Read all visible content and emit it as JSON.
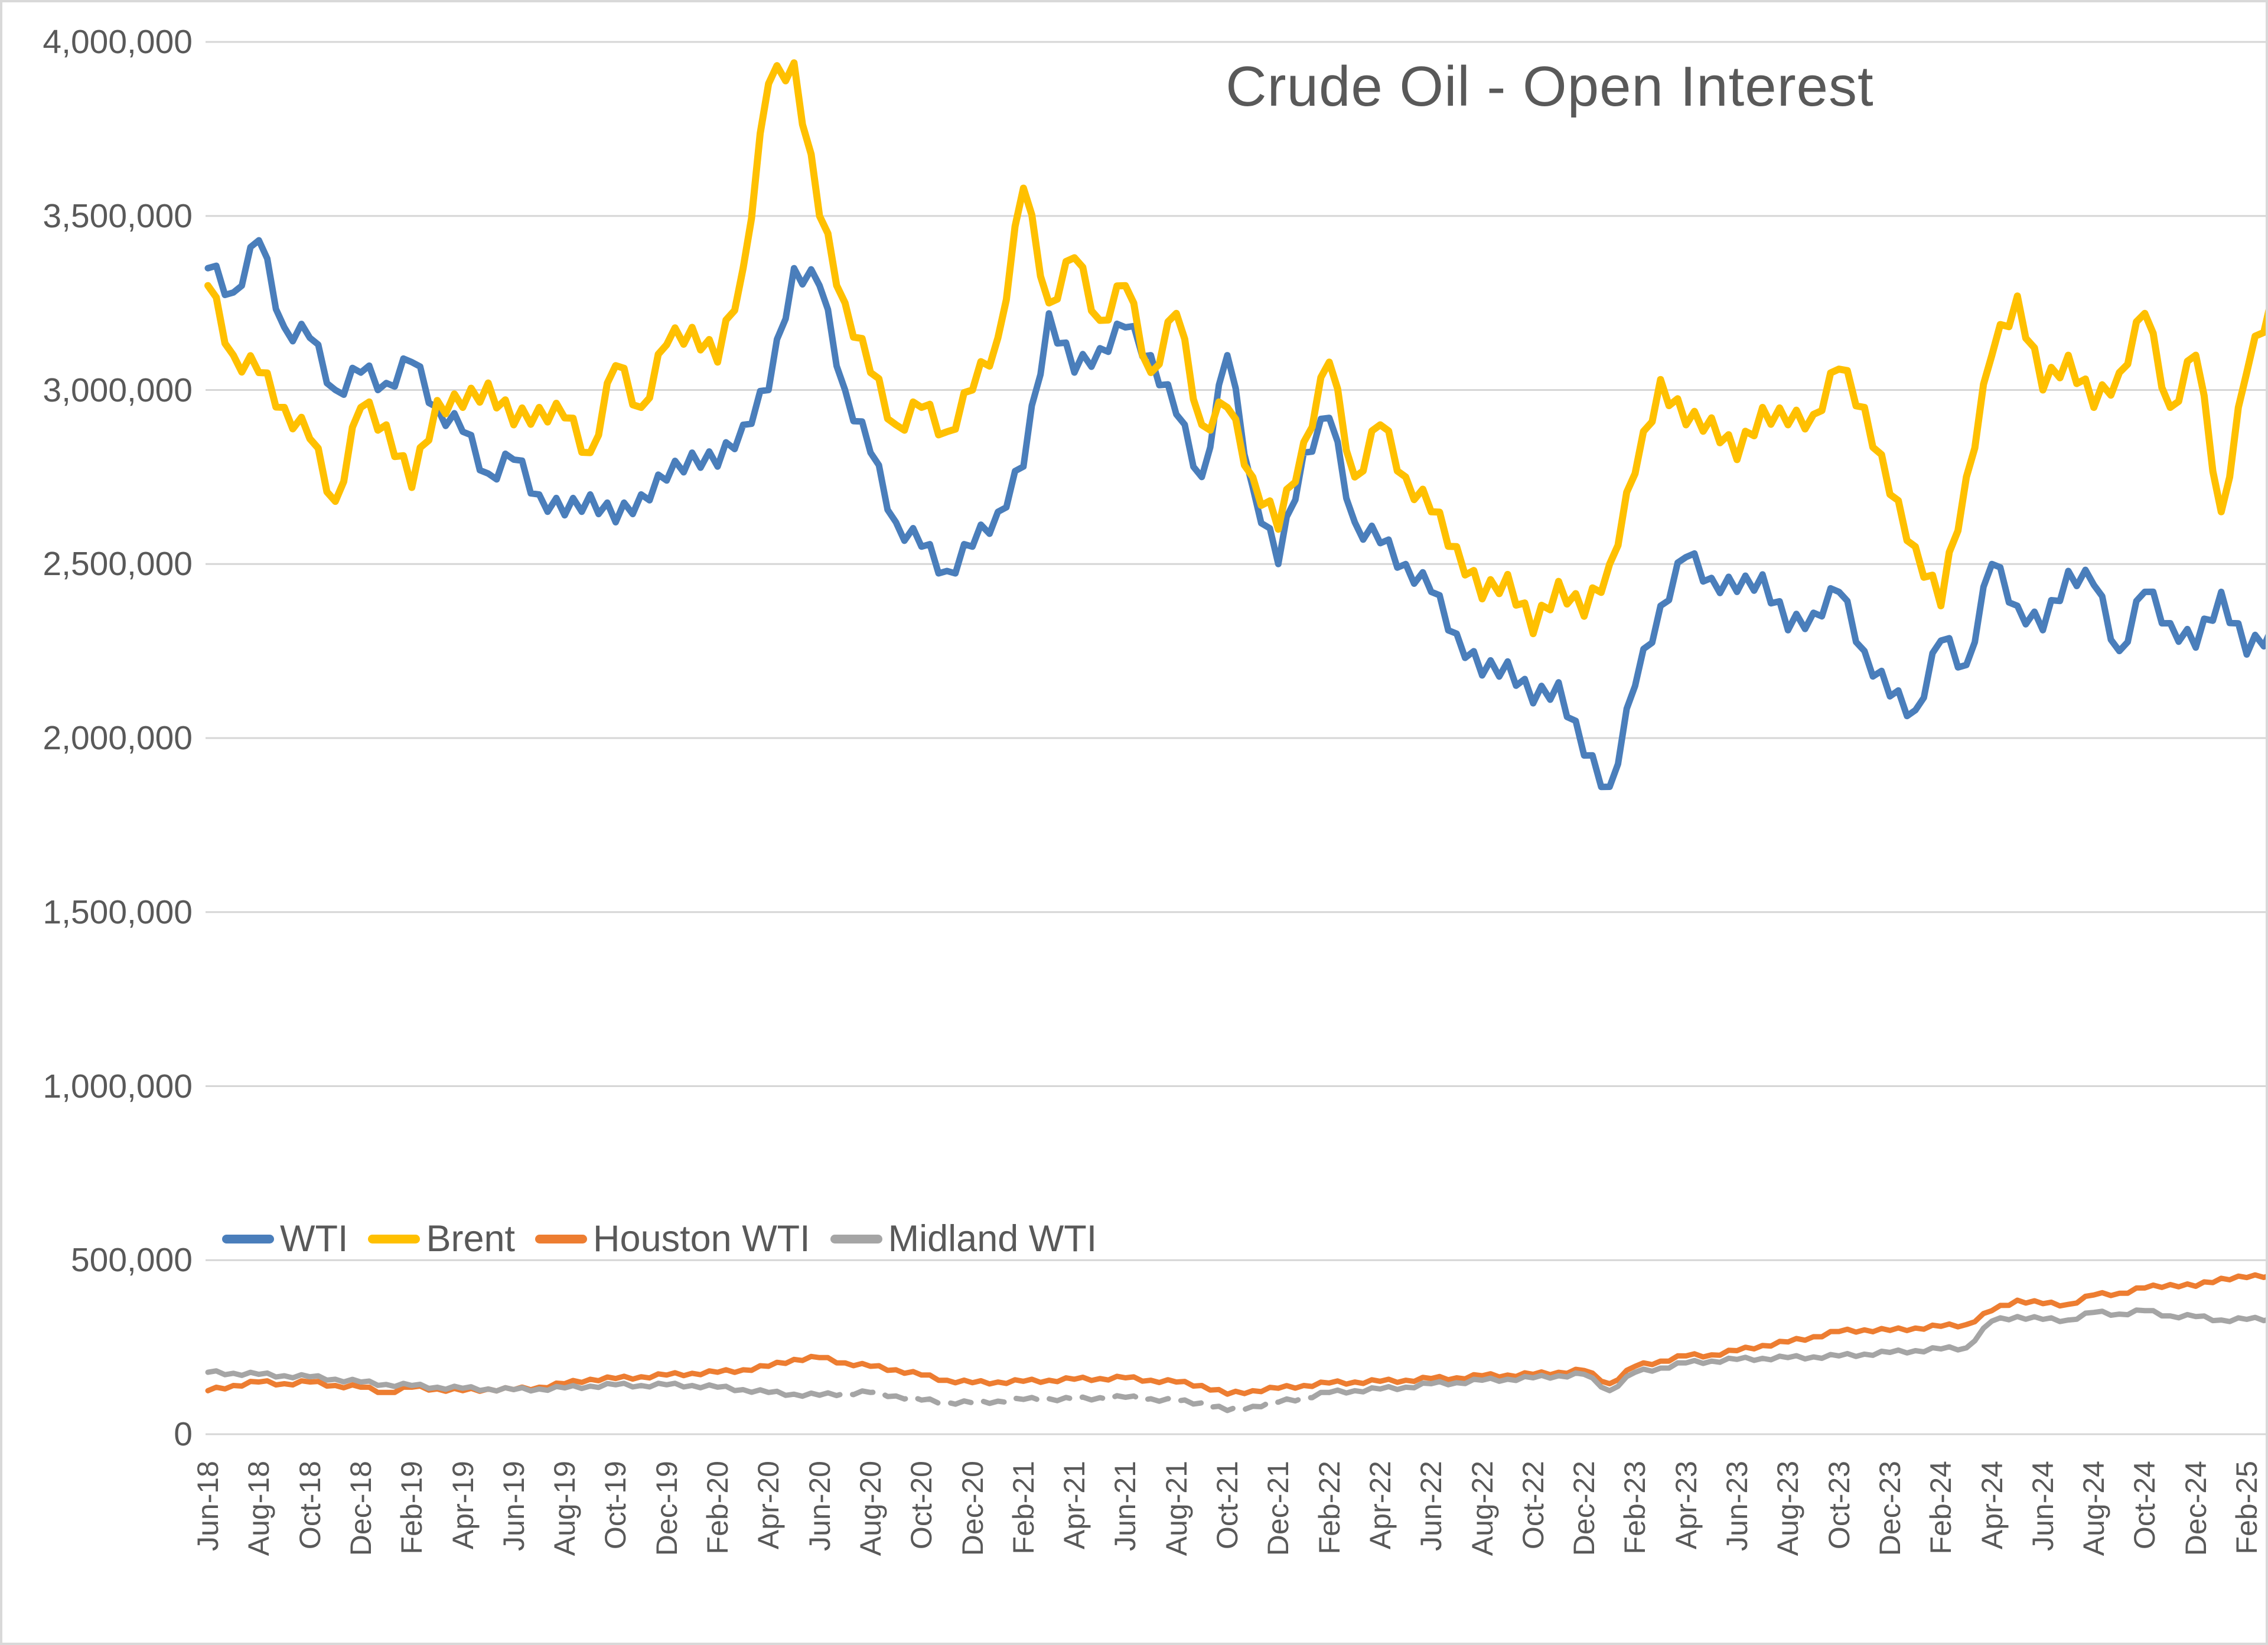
{
  "title": "Crude Oil - Open Interest",
  "colors": {
    "wti": "#4A7EBB",
    "brent": "#FFC000",
    "houston_wti": "#ED7D31",
    "midland_wti": "#A5A5A5",
    "gridline": "#D6D6D6",
    "text": "#595959",
    "background": "#FFFFFF"
  },
  "chart_data": {
    "type": "line",
    "title": "Crude Oil - Open Interest",
    "xlabel": "",
    "ylabel": "",
    "ylim": [
      0,
      4000000
    ],
    "y_tick_step": 500000,
    "y_tick_labels": [
      "0",
      "500,000",
      "1,000,000",
      "1,500,000",
      "2,000,000",
      "2,500,000",
      "3,000,000",
      "3,500,000",
      "4,000,000"
    ],
    "grid": "horizontal",
    "legend_position": "inside-bottom-left",
    "x": [
      "Jun-18",
      "Jul-18",
      "Aug-18",
      "Sep-18",
      "Oct-18",
      "Nov-18",
      "Dec-18",
      "Jan-19",
      "Feb-19",
      "Mar-19",
      "Apr-19",
      "May-19",
      "Jun-19",
      "Jul-19",
      "Aug-19",
      "Sep-19",
      "Oct-19",
      "Nov-19",
      "Dec-19",
      "Jan-20",
      "Feb-20",
      "Mar-20",
      "Apr-20",
      "May-20",
      "Jun-20",
      "Jul-20",
      "Aug-20",
      "Sep-20",
      "Oct-20",
      "Nov-20",
      "Dec-20",
      "Jan-21",
      "Feb-21",
      "Mar-21",
      "Apr-21",
      "May-21",
      "Jun-21",
      "Jul-21",
      "Aug-21",
      "Sep-21",
      "Oct-21",
      "Nov-21",
      "Dec-21",
      "Jan-22",
      "Feb-22",
      "Mar-22",
      "Apr-22",
      "May-22",
      "Jun-22",
      "Jul-22",
      "Aug-22",
      "Sep-22",
      "Oct-22",
      "Nov-22",
      "Dec-22",
      "Jan-23",
      "Feb-23",
      "Mar-23",
      "Apr-23",
      "May-23",
      "Jun-23",
      "Jul-23",
      "Aug-23",
      "Sep-23",
      "Oct-23",
      "Nov-23",
      "Dec-23",
      "Jan-24",
      "Feb-24",
      "Mar-24",
      "Apr-24",
      "May-24",
      "Jun-24",
      "Jul-24",
      "Aug-24",
      "Sep-24",
      "Oct-24",
      "Nov-24",
      "Dec-24",
      "Jan-25",
      "Feb-25",
      "Mar-25"
    ],
    "x_tick_labels": [
      "Jun-18",
      "Aug-18",
      "Oct-18",
      "Dec-18",
      "Feb-19",
      "Apr-19",
      "Jun-19",
      "Aug-19",
      "Oct-19",
      "Dec-19",
      "Feb-20",
      "Apr-20",
      "Jun-20",
      "Aug-20",
      "Oct-20",
      "Dec-20",
      "Feb-21",
      "Apr-21",
      "Jun-21",
      "Aug-21",
      "Oct-21",
      "Dec-21",
      "Feb-22",
      "Apr-22",
      "Jun-22",
      "Aug-22",
      "Oct-22",
      "Dec-22",
      "Feb-23",
      "Apr-23",
      "Jun-23",
      "Aug-23",
      "Oct-23",
      "Dec-23",
      "Feb-24",
      "Apr-24",
      "Jun-24",
      "Aug-24",
      "Oct-24",
      "Dec-24",
      "Feb-25"
    ],
    "series": [
      {
        "name": "WTI",
        "color": "#4A7EBB",
        "values": [
          3350000,
          3280000,
          3430000,
          3180000,
          3150000,
          3000000,
          3050000,
          3020000,
          3080000,
          2950000,
          2880000,
          2760000,
          2800000,
          2700000,
          2640000,
          2700000,
          2620000,
          2700000,
          2740000,
          2820000,
          2780000,
          2900000,
          3000000,
          3350000,
          3300000,
          3000000,
          2820000,
          2620000,
          2550000,
          2480000,
          2550000,
          2650000,
          2780000,
          3220000,
          3050000,
          3120000,
          3180000,
          3100000,
          2930000,
          2750000,
          3100000,
          2720000,
          2500000,
          2820000,
          2920000,
          2620000,
          2560000,
          2500000,
          2420000,
          2300000,
          2180000,
          2220000,
          2100000,
          2160000,
          1950000,
          1860000,
          2150000,
          2380000,
          2520000,
          2460000,
          2420000,
          2470000,
          2310000,
          2360000,
          2420000,
          2250000,
          2120000,
          2080000,
          2280000,
          2210000,
          2500000,
          2380000,
          2310000,
          2480000,
          2440000,
          2250000,
          2420000,
          2330000,
          2260000,
          2420000,
          2240000,
          2320000
        ]
      },
      {
        "name": "Brent",
        "color": "#FFC000",
        "values": [
          3300000,
          3100000,
          3050000,
          2950000,
          2860000,
          2680000,
          2950000,
          2900000,
          2720000,
          2970000,
          2950000,
          3020000,
          2900000,
          2950000,
          2920000,
          2820000,
          3070000,
          2950000,
          3130000,
          3180000,
          3080000,
          3350000,
          3880000,
          3940000,
          3500000,
          3250000,
          3050000,
          2900000,
          2950000,
          2880000,
          3000000,
          3150000,
          3580000,
          3250000,
          3380000,
          3200000,
          3300000,
          3050000,
          3220000,
          2900000,
          2950000,
          2750000,
          2600000,
          2850000,
          3080000,
          2750000,
          2900000,
          2750000,
          2650000,
          2550000,
          2400000,
          2470000,
          2300000,
          2450000,
          2350000,
          2500000,
          2760000,
          3030000,
          2900000,
          2920000,
          2800000,
          2950000,
          2900000,
          2930000,
          3060000,
          2950000,
          2700000,
          2550000,
          2380000,
          2750000,
          3100000,
          3270000,
          3000000,
          3100000,
          2950000,
          3050000,
          3220000,
          2950000,
          3100000,
          2650000,
          3050000,
          3270000
        ]
      },
      {
        "name": "Houston WTI",
        "color": "#ED7D31",
        "values": [
          125000,
          140000,
          150000,
          145000,
          150000,
          140000,
          135000,
          120000,
          135000,
          130000,
          125000,
          130000,
          128000,
          135000,
          145000,
          158000,
          160000,
          165000,
          170000,
          175000,
          178000,
          185000,
          195000,
          215000,
          220000,
          205000,
          195000,
          185000,
          170000,
          155000,
          148000,
          150000,
          152000,
          155000,
          158000,
          160000,
          162000,
          155000,
          150000,
          140000,
          115000,
          125000,
          132000,
          140000,
          147000,
          150000,
          152000,
          155000,
          160000,
          162000,
          168000,
          170000,
          172000,
          178000,
          183000,
          145000,
          195000,
          210000,
          225000,
          228000,
          240000,
          255000,
          265000,
          280000,
          295000,
          300000,
          298000,
          305000,
          310000,
          315000,
          355000,
          385000,
          375000,
          373000,
          400000,
          405000,
          420000,
          430000,
          425000,
          448000,
          450000,
          458000
        ]
      },
      {
        "name": "Midland WTI",
        "color": "#A5A5A5",
        "dashed_range": [
          24,
          44
        ],
        "values": [
          178000,
          175000,
          172000,
          168000,
          165000,
          158000,
          150000,
          143000,
          140000,
          135000,
          132000,
          130000,
          128000,
          130000,
          133000,
          138000,
          142000,
          140000,
          142000,
          140000,
          135000,
          128000,
          120000,
          115000,
          112000,
          118000,
          120000,
          110000,
          98000,
          92000,
          90000,
          95000,
          100000,
          102000,
          100000,
          105000,
          106000,
          102000,
          95000,
          90000,
          68000,
          80000,
          92000,
          105000,
          120000,
          125000,
          130000,
          135000,
          145000,
          148000,
          155000,
          158000,
          162000,
          168000,
          172000,
          125000,
          178000,
          190000,
          205000,
          210000,
          215000,
          218000,
          220000,
          222000,
          225000,
          230000,
          235000,
          240000,
          245000,
          248000,
          325000,
          338000,
          330000,
          328000,
          350000,
          345000,
          355000,
          340000,
          338000,
          328000,
          330000,
          332000
        ]
      }
    ]
  }
}
